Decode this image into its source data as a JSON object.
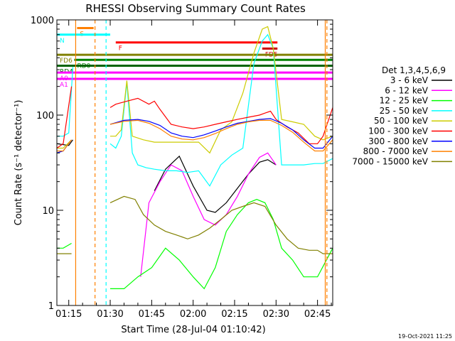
{
  "chart_data": {
    "type": "line",
    "title": "RHESSI Observing Summary Count Rates",
    "xlabel": "Start Time (28-Jul-04 01:10:42)",
    "ylabel": "Count Rate (s⁻¹ detector⁻¹)",
    "ylog": true,
    "ylim": [
      1,
      1000
    ],
    "xlim_minutes": [
      70.7,
      170.5
    ],
    "x_ticks": [
      {
        "t": 75,
        "label": "01:15"
      },
      {
        "t": 90,
        "label": "01:30"
      },
      {
        "t": 105,
        "label": "01:45"
      },
      {
        "t": 120,
        "label": "02:00"
      },
      {
        "t": 135,
        "label": "02:15"
      },
      {
        "t": 150,
        "label": "02:30"
      },
      {
        "t": 165,
        "label": "02:45"
      }
    ],
    "y_ticks": [
      {
        "v": 1,
        "label": "1"
      },
      {
        "v": 10,
        "label": "10"
      },
      {
        "v": 100,
        "label": "100"
      },
      {
        "v": 1000,
        "label": "1000"
      }
    ],
    "legend_title": "Det 1,3,4,5,6,9",
    "legend_position": "right",
    "series": [
      {
        "name": "3 - 6 keV",
        "color": "#000000",
        "x": [
          70.7,
          75,
          76.5,
          88,
          92,
          100,
          103,
          106,
          110,
          115,
          120,
          125,
          128,
          132,
          136,
          140,
          144,
          147,
          150,
          155,
          160,
          165,
          167,
          170.5
        ],
        "y": [
          50,
          48,
          55,
          null,
          null,
          null,
          null,
          16,
          27,
          37,
          18,
          10,
          9.5,
          12,
          17,
          24,
          32,
          34,
          30,
          null,
          null,
          null,
          null,
          null
        ]
      },
      {
        "name": "6 - 12 keV",
        "color": "#ff00ff",
        "x": [
          70.7,
          76,
          88,
          92,
          101,
          104,
          108,
          112,
          116,
          120,
          124,
          128,
          132,
          136,
          140,
          144,
          147,
          150,
          155,
          160,
          165,
          170.5
        ],
        "y": [
          null,
          null,
          null,
          null,
          2,
          12,
          20,
          30,
          26,
          14,
          8,
          7,
          9,
          14,
          24,
          36,
          40,
          30,
          null,
          null,
          null,
          null
        ]
      },
      {
        "name": "12 - 25 keV",
        "color": "#00ff00",
        "x": [
          70.7,
          73,
          76,
          88,
          90,
          95,
          100,
          105,
          110,
          115,
          120,
          124,
          128,
          132,
          136,
          140,
          143,
          146,
          149,
          152,
          156,
          160,
          165,
          170.5
        ],
        "y": [
          4,
          4,
          4.5,
          null,
          1.5,
          1.5,
          2,
          2.5,
          4,
          3,
          2,
          1.5,
          2.5,
          6,
          9,
          12,
          13,
          12,
          8,
          4,
          3,
          2,
          2,
          4
        ]
      },
      {
        "name": "25 - 50 keV",
        "color": "#00ffff",
        "x": [
          70.7,
          73,
          75,
          76.5,
          88,
          90,
          92,
          94,
          96,
          98,
          100,
          103,
          106,
          110,
          114,
          118,
          122,
          126,
          130,
          134,
          138,
          142,
          145,
          147,
          149,
          152,
          156,
          160,
          164,
          167,
          170.5
        ],
        "y": [
          60,
          60,
          65,
          320,
          null,
          50,
          45,
          60,
          220,
          40,
          30,
          28,
          27,
          26,
          26,
          25,
          26,
          18,
          30,
          38,
          45,
          350,
          600,
          700,
          500,
          30,
          30,
          30,
          31,
          31,
          35
        ]
      },
      {
        "name": "50 - 100 keV",
        "color": "#cccc00",
        "x": [
          70.7,
          73,
          76,
          88,
          90,
          92,
          94,
          96,
          98,
          102,
          106,
          110,
          114,
          118,
          122,
          126,
          130,
          134,
          138,
          142,
          145,
          147,
          149,
          152,
          156,
          160,
          164,
          167,
          170.5
        ],
        "y": [
          45,
          45,
          55,
          null,
          60,
          60,
          70,
          230,
          60,
          55,
          52,
          52,
          52,
          52,
          52,
          40,
          70,
          85,
          170,
          450,
          800,
          850,
          500,
          90,
          85,
          80,
          60,
          55,
          60
        ]
      },
      {
        "name": "100 - 300 keV",
        "color": "#ff0000",
        "x": [
          70.7,
          73,
          76,
          88,
          90,
          92,
          96,
          100,
          104,
          106,
          108,
          112,
          116,
          120,
          124,
          128,
          132,
          136,
          140,
          144,
          146,
          148,
          150,
          154,
          158,
          162,
          165,
          167,
          170.5
        ],
        "y": [
          45,
          50,
          200,
          null,
          120,
          130,
          140,
          150,
          130,
          140,
          115,
          80,
          75,
          72,
          75,
          80,
          85,
          90,
          95,
          100,
          105,
          110,
          90,
          75,
          65,
          50,
          50,
          60,
          120
        ]
      },
      {
        "name": "300 - 800 keV",
        "color": "#0000ff",
        "x": [
          70.7,
          73,
          76,
          88,
          90,
          95,
          100,
          104,
          108,
          112,
          116,
          120,
          124,
          128,
          132,
          136,
          140,
          144,
          148,
          152,
          156,
          160,
          164,
          167,
          170.5
        ],
        "y": [
          40,
          42,
          55,
          null,
          80,
          88,
          90,
          86,
          78,
          65,
          60,
          58,
          62,
          68,
          75,
          82,
          86,
          90,
          92,
          82,
          70,
          55,
          45,
          45,
          60
        ]
      },
      {
        "name": "800 - 7000 keV",
        "color": "#ff8000",
        "x": [
          70.7,
          73,
          76,
          88,
          90,
          95,
          100,
          104,
          108,
          112,
          116,
          120,
          124,
          128,
          132,
          136,
          140,
          144,
          148,
          152,
          156,
          160,
          164,
          167,
          170.5
        ],
        "y": [
          42,
          42,
          55,
          null,
          80,
          86,
          88,
          82,
          72,
          60,
          56,
          55,
          58,
          64,
          72,
          80,
          85,
          88,
          88,
          78,
          66,
          52,
          42,
          42,
          55
        ]
      },
      {
        "name": "7000 - 15000 keV",
        "color": "#808000",
        "x": [
          70.7,
          73,
          76,
          88,
          90,
          95,
          99,
          102,
          106,
          110,
          114,
          118,
          122,
          126,
          130,
          134,
          138,
          142,
          146,
          150,
          154,
          158,
          162,
          165,
          167,
          170.5
        ],
        "y": [
          3.5,
          3.5,
          3.5,
          null,
          12,
          14,
          13,
          9,
          7,
          6,
          5.5,
          5,
          5.5,
          6.5,
          8,
          10,
          11,
          12,
          11,
          7,
          5,
          4,
          3.8,
          3.8,
          3.5,
          3.5
        ]
      }
    ],
    "attenuator_flags": [
      {
        "label": "S",
        "color": "#ff8000",
        "x_start": 78,
        "x_end": 84,
        "y": 820
      },
      {
        "label": "N",
        "color": "#00ffff",
        "x_start": 70.7,
        "x_end": 90,
        "y": 700
      },
      {
        "label": "F",
        "color": "#ff0000",
        "x_start": 92,
        "x_end": 150.5,
        "y": 580
      },
      {
        "label": "FD5",
        "color": "#cc0000",
        "x_start": 145,
        "x_end": 150.5,
        "y": 500
      },
      {
        "label": "FD6",
        "color": "#808000",
        "x_start": 70.7,
        "x_end": 170.5,
        "y": 430
      },
      {
        "label": "RD0",
        "color": "#008000",
        "x_start": 77,
        "x_end": 170.5,
        "y": 380
      },
      {
        "label": "RD4",
        "color": "#006400",
        "x_start": 70.7,
        "x_end": 170.5,
        "y": 330
      },
      {
        "label": "A0",
        "color": "#ff00ff",
        "x_start": 70.7,
        "x_end": 170.5,
        "y": 280
      },
      {
        "label": "A1",
        "color": "#ff00ff",
        "x_start": 70.7,
        "x_end": 170.5,
        "y": 240
      }
    ],
    "vertical_markers": [
      {
        "t": 77.5,
        "color": "#ff8000",
        "style": "solid"
      },
      {
        "t": 84.5,
        "color": "#ff8000",
        "style": "dashed"
      },
      {
        "t": 88.5,
        "color": "#00ffff",
        "style": "dashed"
      },
      {
        "t": 167.8,
        "color": "#ff8000",
        "style": "solid"
      },
      {
        "t": 168.4,
        "color": "#ff8000",
        "style": "dashed"
      }
    ]
  },
  "footer": {
    "timestamp": "19-Oct-2021 11:25"
  }
}
